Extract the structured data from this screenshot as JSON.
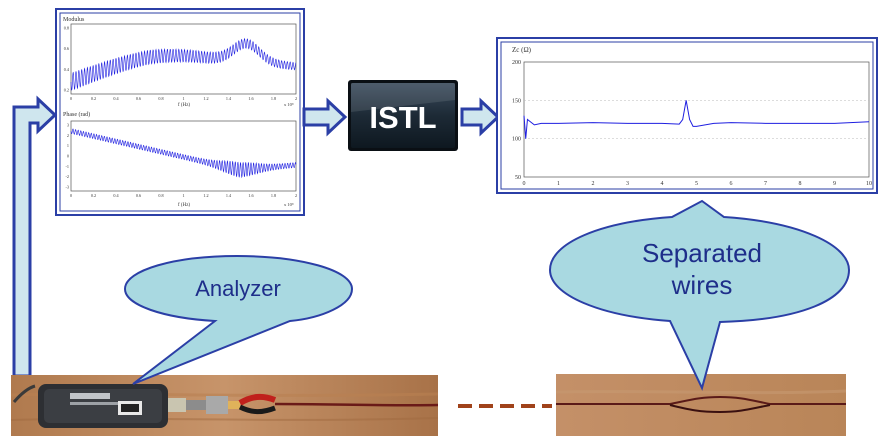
{
  "processor_label": "ISTL",
  "callouts": {
    "analyzer": "Analyzer",
    "separated_line1": "Separated",
    "separated_line2": "wires"
  },
  "plots": {
    "modulus": {
      "title": "Modulus",
      "xlabel": "f (Hz)",
      "xscale": "x 10⁹",
      "y_ticks": [
        "0.8",
        "0.6",
        "0.4",
        "0.2"
      ],
      "x_ticks": [
        "0",
        "0.2",
        "0.4",
        "0.6",
        "0.8",
        "1",
        "1.2",
        "1.4",
        "1.6",
        "1.8",
        "2"
      ]
    },
    "phase": {
      "title": "Phase (rad)",
      "xlabel": "f (Hz)",
      "xscale": "x 10⁹",
      "y_ticks": [
        "3",
        "2",
        "1",
        "0",
        "-1",
        "-2",
        "-3"
      ],
      "x_ticks": [
        "0",
        "0.2",
        "0.4",
        "0.6",
        "0.8",
        "1",
        "1.2",
        "1.4",
        "1.6",
        "1.8",
        "2"
      ]
    },
    "impedance": {
      "title": "Zc (Ω)",
      "y_ticks": [
        "200",
        "150",
        "100",
        "50"
      ],
      "x_ticks": [
        "0",
        "1",
        "2",
        "3",
        "4",
        "5",
        "6",
        "7",
        "8",
        "9",
        "10"
      ]
    }
  },
  "chart_data": {
    "type": "line",
    "ylabel": "Zc (Ω)",
    "xlim": [
      0,
      10
    ],
    "ylim": [
      50,
      200
    ],
    "x": [
      0,
      0.05,
      0.1,
      0.3,
      0.5,
      1,
      2,
      3,
      4,
      4.5,
      4.6,
      4.7,
      4.8,
      4.9,
      5,
      5.5,
      6,
      7,
      8,
      9,
      10
    ],
    "values": [
      130,
      100,
      125,
      118,
      120,
      120,
      121,
      120,
      120,
      119,
      125,
      150,
      125,
      116,
      116,
      120,
      121,
      120,
      120,
      120,
      122
    ]
  },
  "colors": {
    "plot_line": "#1f1fe0",
    "arrow_fill": "#cfe6ee",
    "arrow_stroke": "#2b3fa6",
    "callout_fill": "#a9d9e1",
    "cable_dash": "#a0421a"
  }
}
